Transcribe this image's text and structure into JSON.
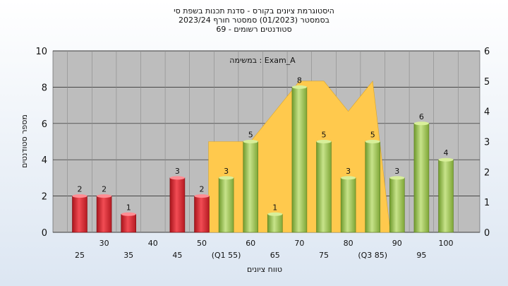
{
  "title_lines": [
    "היסטוגרמת ציונים בקורס - סדנת תכנות בשפת סי",
    "בסמסטר  (01/2023)  סמסטר חורף  2023/24",
    "סטודנטים רשומים - 69"
  ],
  "chart_data": {
    "type": "bar",
    "annotation": "במשימה : Exam_A",
    "ylabel": "מספר סטודנטים",
    "xlabel": "טווח ציונים",
    "ylim": [
      0,
      10
    ],
    "yticks": [
      0,
      2,
      4,
      6,
      8,
      10
    ],
    "y2lim": [
      0,
      6
    ],
    "y2ticks": [
      0,
      1,
      2,
      3,
      4,
      5,
      6
    ],
    "grid": true,
    "categories": [
      "25",
      "30",
      "35",
      "40",
      "45",
      "50",
      "55",
      "60",
      "65",
      "70",
      "75",
      "80",
      "85",
      "90",
      "95",
      "100"
    ],
    "category_labels": [
      "25",
      "30",
      "35",
      "40",
      "45",
      "50",
      "(Q1 55)",
      "60",
      "65",
      "70",
      "75",
      "80",
      "(Q3 85)",
      "90",
      "95",
      "100"
    ],
    "values": [
      2,
      2,
      1,
      0,
      3,
      2,
      3,
      5,
      1,
      8,
      5,
      3,
      5,
      3,
      6,
      4
    ],
    "passing_threshold": 55,
    "colors": {
      "fail": "#e0343c",
      "pass": "#9cc25a",
      "area": "#ffc94d",
      "plot_bg": "#bdbdbd",
      "grid": "#202020"
    },
    "box_area": {
      "x": [
        "55",
        "60",
        "70",
        "75",
        "80",
        "85"
      ],
      "y2": [
        3,
        3,
        5,
        5,
        4,
        5
      ]
    }
  }
}
